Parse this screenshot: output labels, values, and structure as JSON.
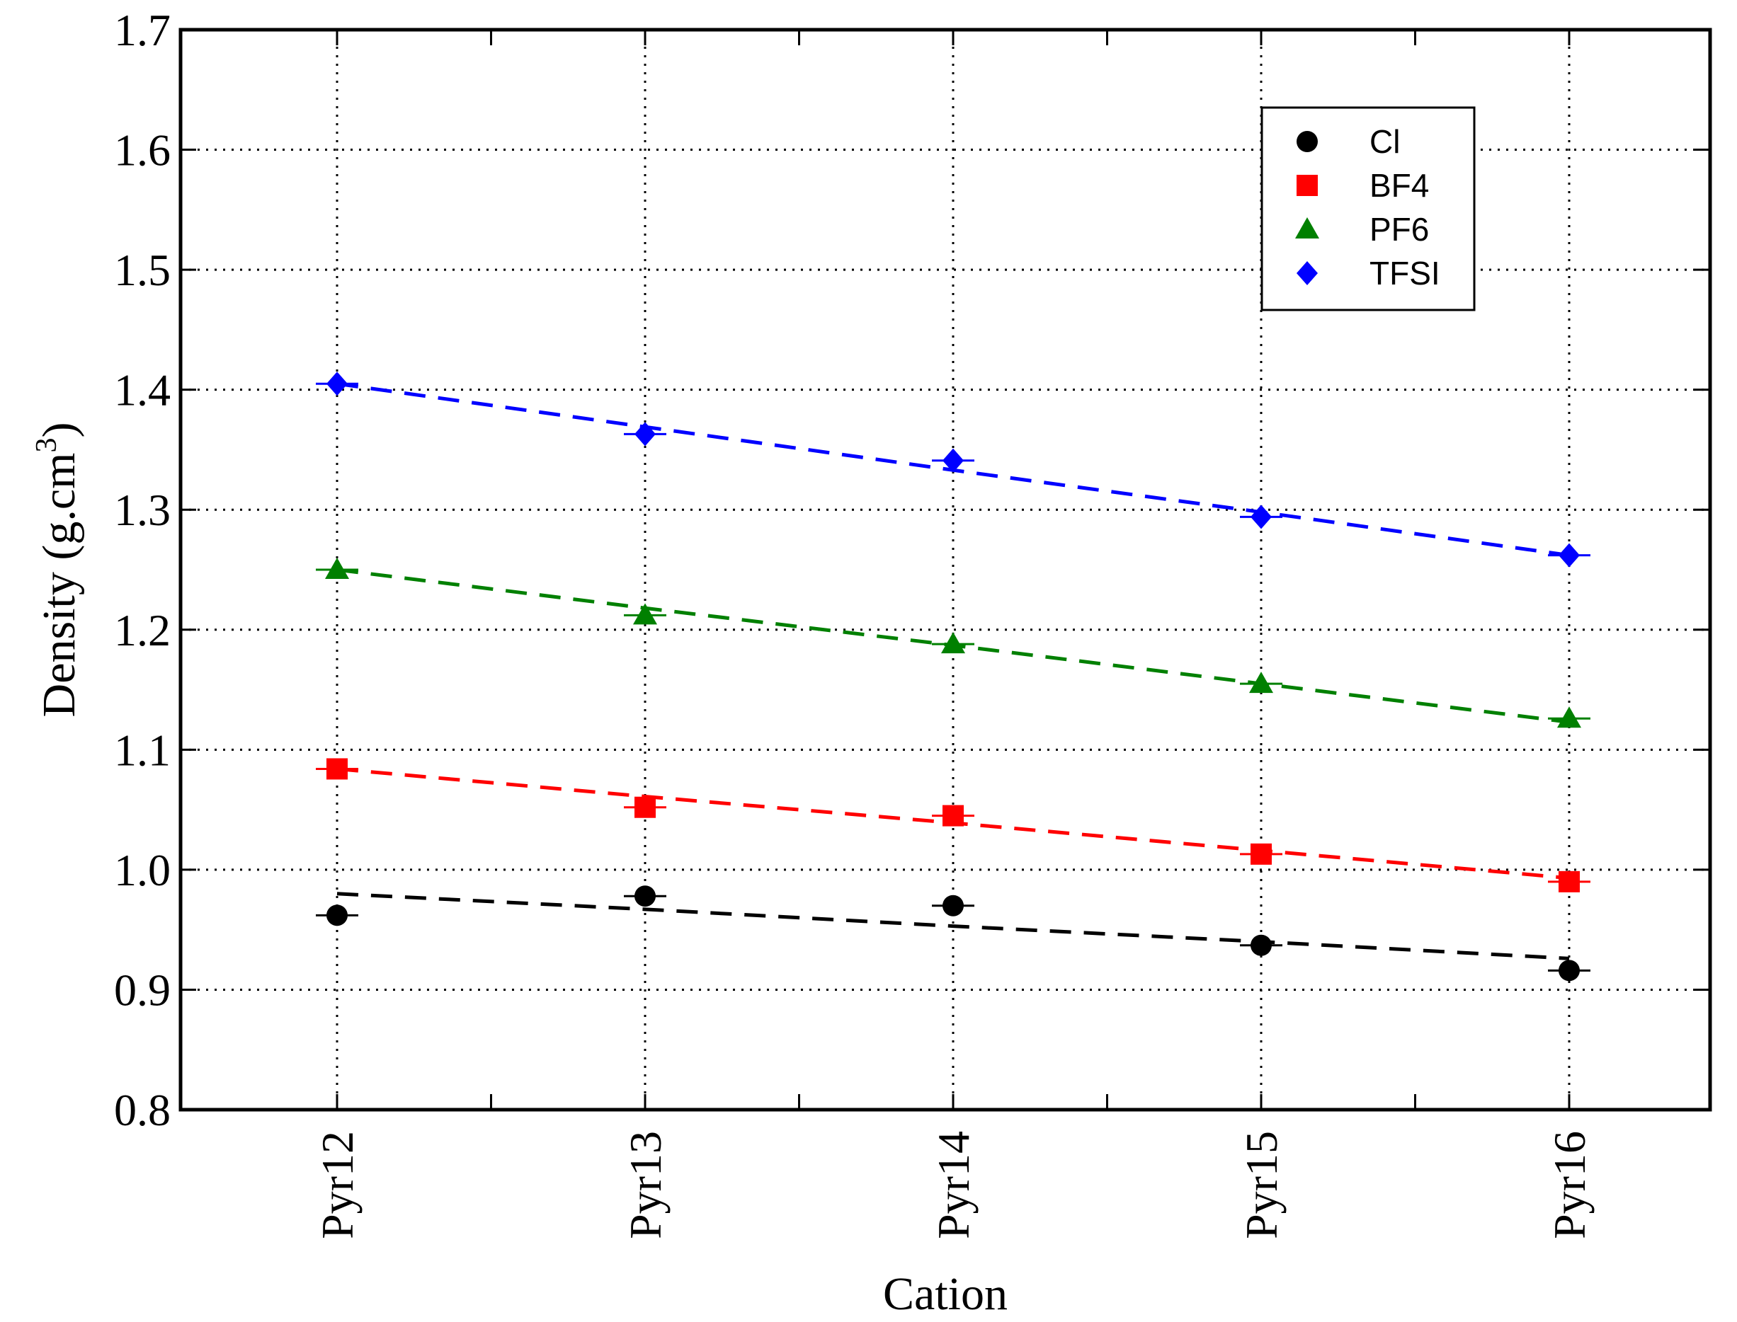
{
  "chart_data": {
    "type": "line",
    "xlabel": "Cation",
    "ylabel": "Density (g.cm",
    "ylabel_sup": "3",
    "ylabel_close": ")",
    "categories": [
      "Pyr12",
      "Pyr13",
      "Pyr14",
      "Pyr15",
      "Pyr16"
    ],
    "ylim": [
      0.8,
      1.7
    ],
    "yticks": [
      0.8,
      0.9,
      1.0,
      1.1,
      1.2,
      1.3,
      1.4,
      1.5,
      1.6,
      1.7
    ],
    "ytick_labels": [
      "0.8",
      "0.9",
      "1.0",
      "1.1",
      "1.2",
      "1.3",
      "1.4",
      "1.5",
      "1.6",
      "1.7"
    ],
    "grid": true,
    "legend_position": "top-right",
    "series": [
      {
        "name": "Cl",
        "marker": "circle",
        "color": "#000000",
        "values": [
          0.962,
          0.978,
          0.97,
          0.937,
          0.916
        ],
        "fit": [
          0.98,
          0.967,
          0.953,
          0.94,
          0.926
        ]
      },
      {
        "name": "BF4",
        "marker": "square",
        "color": "#ff0000",
        "values": [
          1.084,
          1.052,
          1.045,
          1.013,
          0.99
        ],
        "fit": [
          1.084,
          1.061,
          1.039,
          1.016,
          0.993
        ]
      },
      {
        "name": "PF6",
        "marker": "triangle",
        "color": "#008000",
        "values": [
          1.25,
          1.212,
          1.188,
          1.155,
          1.126
        ],
        "fit": [
          1.25,
          1.218,
          1.187,
          1.155,
          1.123
        ]
      },
      {
        "name": "TFSI",
        "marker": "diamond",
        "color": "#0000ff",
        "values": [
          1.405,
          1.363,
          1.341,
          1.294,
          1.262
        ],
        "fit": [
          1.405,
          1.369,
          1.333,
          1.298,
          1.262
        ]
      }
    ]
  }
}
